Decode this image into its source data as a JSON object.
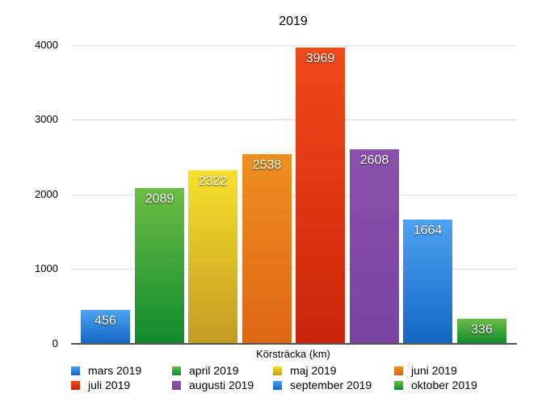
{
  "chart_data": {
    "type": "bar",
    "title": "2019",
    "xlabel": "Körsträcka (km)",
    "ylabel": "",
    "ylim": [
      0,
      4000
    ],
    "yticks": [
      0,
      1000,
      2000,
      3000,
      4000
    ],
    "grid": true,
    "legend_position": "bottom",
    "categories": [
      "mars 2019",
      "april 2019",
      "maj 2019",
      "juni 2019",
      "juli 2019",
      "augusti 2019",
      "september 2019",
      "oktober 2019"
    ],
    "values": [
      456,
      2089,
      2322,
      2538,
      3969,
      2608,
      1664,
      336
    ],
    "colors": [
      "#2f86e0",
      "#3aa33a",
      "#ecc72a",
      "#e9861e",
      "#e2391a",
      "#8550a8",
      "#3b93ea",
      "#3ea53a"
    ],
    "bar_gradients": [
      [
        "#4ea2f2",
        "#1466c4"
      ],
      [
        "#6dbd44",
        "#0f8a2e"
      ],
      [
        "#f7e02c",
        "#c39b22"
      ],
      [
        "#ef8f20",
        "#dd6615"
      ],
      [
        "#f24a1a",
        "#cc240b"
      ],
      [
        "#8b52ad",
        "#7a43a0"
      ],
      [
        "#4ea2f2",
        "#1466c4"
      ],
      [
        "#6dbd44",
        "#0f8a2e"
      ]
    ]
  },
  "title": "2019",
  "xlabel": "Körsträcka (km)",
  "yticks": [
    "0",
    "1000",
    "2000",
    "3000",
    "4000"
  ],
  "bars": [
    {
      "label": "456"
    },
    {
      "label": "2089"
    },
    {
      "label": "2322"
    },
    {
      "label": "2538"
    },
    {
      "label": "3969"
    },
    {
      "label": "2608"
    },
    {
      "label": "1664"
    },
    {
      "label": "336"
    }
  ],
  "legend": [
    {
      "label": "mars 2019"
    },
    {
      "label": "april 2019"
    },
    {
      "label": "maj 2019"
    },
    {
      "label": "juni 2019"
    },
    {
      "label": "juli 2019"
    },
    {
      "label": "augusti 2019"
    },
    {
      "label": "september 2019"
    },
    {
      "label": "oktober 2019"
    }
  ]
}
